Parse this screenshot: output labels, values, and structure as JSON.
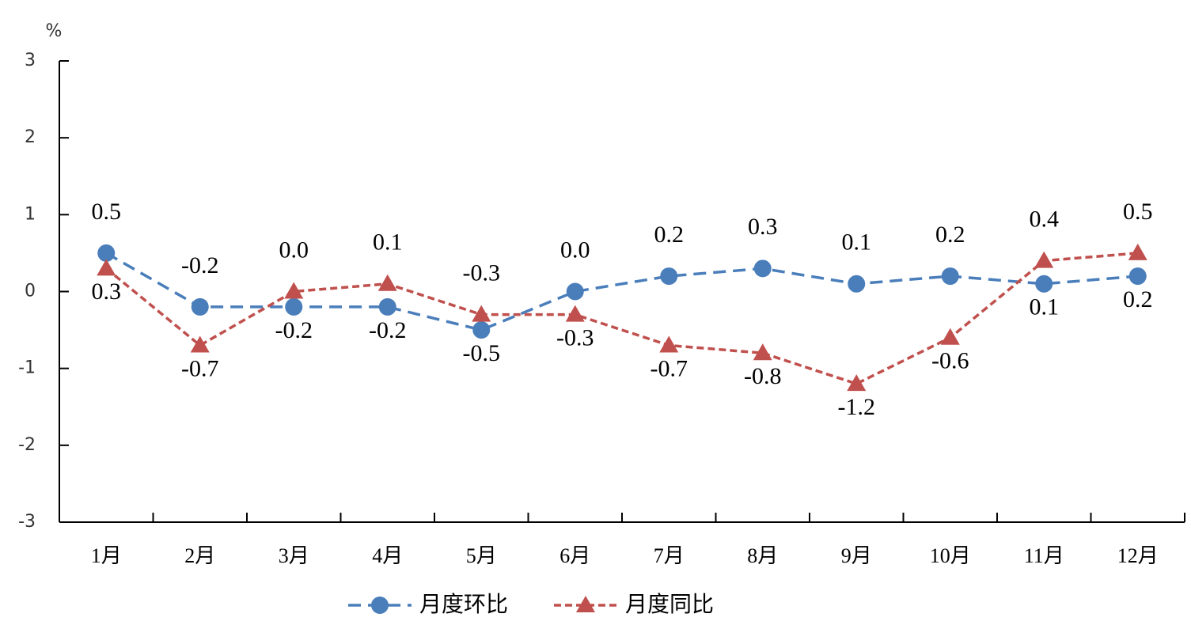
{
  "chart_data": {
    "type": "line",
    "y_unit": "%",
    "categories": [
      "1月",
      "2月",
      "3月",
      "4月",
      "5月",
      "6月",
      "7月",
      "8月",
      "9月",
      "10月",
      "11月",
      "12月"
    ],
    "series": [
      {
        "name": "月度环比",
        "color": "#4a7ebb",
        "marker": "circle",
        "values": [
          0.5,
          -0.2,
          -0.2,
          -0.2,
          -0.5,
          0,
          0.2,
          0.3,
          0.1,
          0.2,
          0.1,
          0.2
        ],
        "value_labels": [
          "0.5",
          "-0.2",
          "-0.2",
          "-0.2",
          "-0.5",
          "0.0",
          "0.2",
          "0.3",
          "0.1",
          "0.2",
          "0.1",
          "0.2"
        ]
      },
      {
        "name": "月度同比",
        "color": "#c0504d",
        "marker": "triangle",
        "values": [
          0.3,
          -0.7,
          0,
          0.1,
          -0.3,
          -0.3,
          -0.7,
          -0.8,
          -1.2,
          -0.6,
          0.4,
          0.5
        ],
        "value_labels": [
          "0.3",
          "-0.7",
          "0.0",
          "0.1",
          "-0.3",
          "-0.3",
          "-0.7",
          "-0.8",
          "-1.2",
          "-0.6",
          "0.4",
          "0.5"
        ]
      }
    ],
    "ylim": [
      -3,
      3
    ],
    "yticks": [
      -3,
      -2,
      -1,
      0,
      1,
      2,
      3
    ],
    "grid": false,
    "legend": "bottom"
  }
}
